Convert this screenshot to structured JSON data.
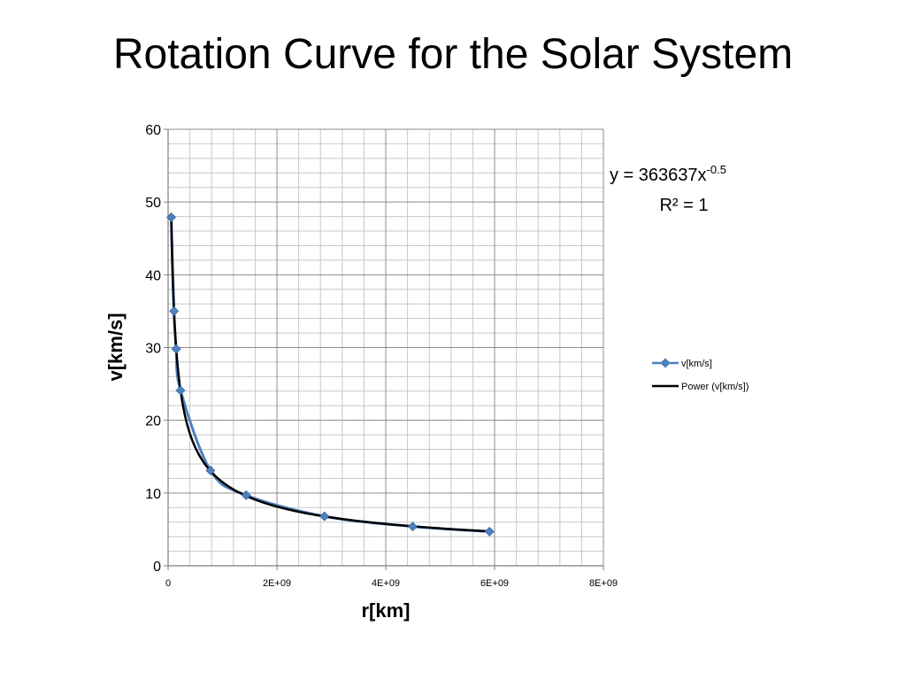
{
  "slide": {
    "title": "Rotation Curve for the Solar System"
  },
  "chart_data": {
    "type": "scatter",
    "xlabel": "r[km]",
    "ylabel": "v[km/s]",
    "xlim": [
      0,
      8000000000
    ],
    "ylim": [
      0,
      60
    ],
    "x_ticks": [
      "0",
      "2E+09",
      "4E+09",
      "6E+09",
      "8E+09"
    ],
    "y_ticks": [
      "0",
      "10",
      "20",
      "30",
      "40",
      "50",
      "60"
    ],
    "grid": true,
    "legend_position": "right",
    "series": [
      {
        "name": "v[km/s]",
        "color": "#4F81BD",
        "marker": "diamond",
        "x": [
          57900000,
          108200000,
          149600000,
          227900000,
          778600000,
          1433500000,
          2872500000,
          4495100000,
          5906400000
        ],
        "y": [
          47.9,
          35.0,
          29.8,
          24.1,
          13.1,
          9.7,
          6.8,
          5.4,
          4.7
        ]
      },
      {
        "name": "Power (v[km/s])",
        "color": "#000000",
        "type": "trendline",
        "coefficient": 363637,
        "exponent": -0.5
      }
    ],
    "annotation": {
      "equation_prefix": "y = 363637x",
      "equation_exponent": "-0.5",
      "r_squared": "R² = 1"
    }
  }
}
